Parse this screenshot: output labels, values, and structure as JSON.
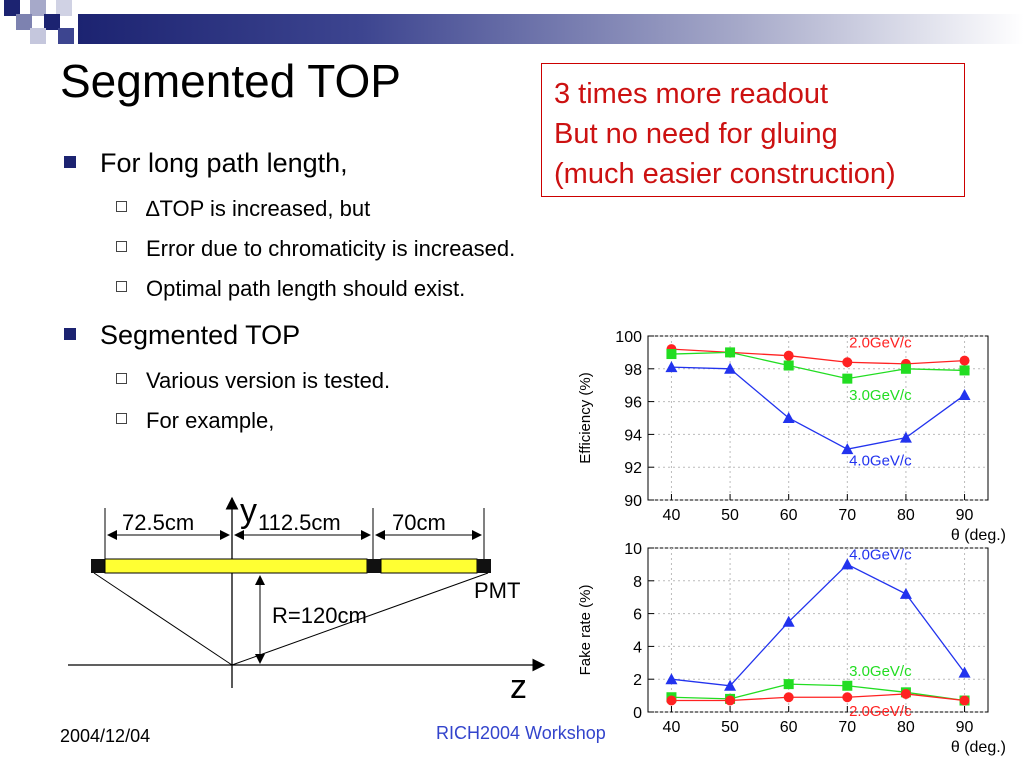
{
  "slide": {
    "title": "Segmented TOP",
    "callout": [
      "3 times more readout",
      "But no need for gluing",
      "(much easier construction)"
    ],
    "bullets": [
      {
        "text": "For long path length,",
        "sub": [
          "∆TOP is increased, but",
          "Error due to chromaticity is increased.",
          "Optimal path length should exist."
        ]
      },
      {
        "text": "Segmented TOP",
        "sub": [
          "Various version is tested.",
          "For example,"
        ]
      }
    ],
    "footer": {
      "date": "2004/12/04",
      "conference": "RICH2004 Workshop"
    }
  },
  "diagram": {
    "axis_y": "y",
    "axis_z": "z",
    "segments": [
      "72.5cm",
      "112.5cm",
      "70cm"
    ],
    "pmt_label": "PMT",
    "radius_label": "R=120cm",
    "colors": {
      "bar": "#ffff33",
      "pmt": "#111111"
    }
  },
  "chart_data": [
    {
      "type": "line",
      "ylabel": "Efficiency (%)",
      "xlabel": "θ (deg.)",
      "x": [
        40,
        50,
        60,
        70,
        80,
        90
      ],
      "xlim": [
        36,
        94
      ],
      "ylim": [
        90,
        100
      ],
      "xticks": [
        40,
        50,
        60,
        70,
        80,
        90
      ],
      "yticks": [
        90,
        92,
        94,
        96,
        98,
        100
      ],
      "grid": true,
      "series": [
        {
          "name": "2.0GeV/c",
          "color": "#ff2222",
          "marker": "circle",
          "values": [
            99.2,
            99.0,
            98.8,
            98.4,
            98.3,
            98.5
          ]
        },
        {
          "name": "3.0GeV/c",
          "color": "#22dd22",
          "marker": "square",
          "values": [
            98.9,
            99.0,
            98.2,
            97.4,
            98.0,
            97.9
          ]
        },
        {
          "name": "4.0GeV/c",
          "color": "#2233ee",
          "marker": "triangle",
          "values": [
            98.1,
            98.0,
            95.0,
            93.1,
            93.8,
            96.4
          ]
        }
      ]
    },
    {
      "type": "line",
      "ylabel": "Fake rate (%)",
      "xlabel": "θ (deg.)",
      "x": [
        40,
        50,
        60,
        70,
        80,
        90
      ],
      "xlim": [
        36,
        94
      ],
      "ylim": [
        0,
        10
      ],
      "xticks": [
        40,
        50,
        60,
        70,
        80,
        90
      ],
      "yticks": [
        0,
        2,
        4,
        6,
        8,
        10
      ],
      "grid": true,
      "series": [
        {
          "name": "4.0GeV/c",
          "color": "#2233ee",
          "marker": "triangle",
          "values": [
            2.0,
            1.6,
            5.5,
            9.0,
            7.2,
            2.4
          ]
        },
        {
          "name": "3.0GeV/c",
          "color": "#22dd22",
          "marker": "square",
          "values": [
            0.9,
            0.8,
            1.7,
            1.6,
            1.2,
            0.7
          ]
        },
        {
          "name": "2.0GeV/c",
          "color": "#ff2222",
          "marker": "circle",
          "values": [
            0.7,
            0.7,
            0.9,
            0.9,
            1.1,
            0.7
          ]
        }
      ]
    }
  ]
}
